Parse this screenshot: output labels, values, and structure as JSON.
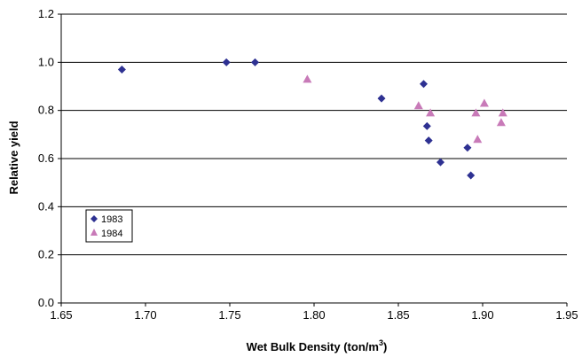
{
  "chart_data": {
    "type": "scatter",
    "title": "",
    "xlabel": "Wet Bulk Density (ton/m",
    "xlabel_sup": "3",
    "xlabel_tail": ")",
    "ylabel": "Relative yield",
    "xlim": [
      1.65,
      1.95
    ],
    "ylim": [
      0.0,
      1.2
    ],
    "x_ticks": [
      "1.65",
      "1.70",
      "1.75",
      "1.80",
      "1.85",
      "1.90",
      "1.95"
    ],
    "y_ticks": [
      "0.0",
      "0.2",
      "0.4",
      "0.6",
      "0.8",
      "1.0",
      "1.2"
    ],
    "grid": "horizontal",
    "legend_position": "left",
    "series": [
      {
        "name": "1983",
        "marker": "diamond",
        "color": "#2E3192",
        "points": [
          {
            "x": 1.686,
            "y": 0.97
          },
          {
            "x": 1.748,
            "y": 1.0
          },
          {
            "x": 1.765,
            "y": 1.0
          },
          {
            "x": 1.84,
            "y": 0.85
          },
          {
            "x": 1.865,
            "y": 0.91
          },
          {
            "x": 1.867,
            "y": 0.735
          },
          {
            "x": 1.868,
            "y": 0.675
          },
          {
            "x": 1.875,
            "y": 0.585
          },
          {
            "x": 1.891,
            "y": 0.645
          },
          {
            "x": 1.893,
            "y": 0.53
          }
        ]
      },
      {
        "name": "1984",
        "marker": "triangle",
        "color": "#C87AB8",
        "points": [
          {
            "x": 1.796,
            "y": 0.93
          },
          {
            "x": 1.862,
            "y": 0.82
          },
          {
            "x": 1.869,
            "y": 0.79
          },
          {
            "x": 1.896,
            "y": 0.79
          },
          {
            "x": 1.897,
            "y": 0.68
          },
          {
            "x": 1.901,
            "y": 0.83
          },
          {
            "x": 1.911,
            "y": 0.75
          },
          {
            "x": 1.912,
            "y": 0.79
          }
        ]
      }
    ]
  }
}
